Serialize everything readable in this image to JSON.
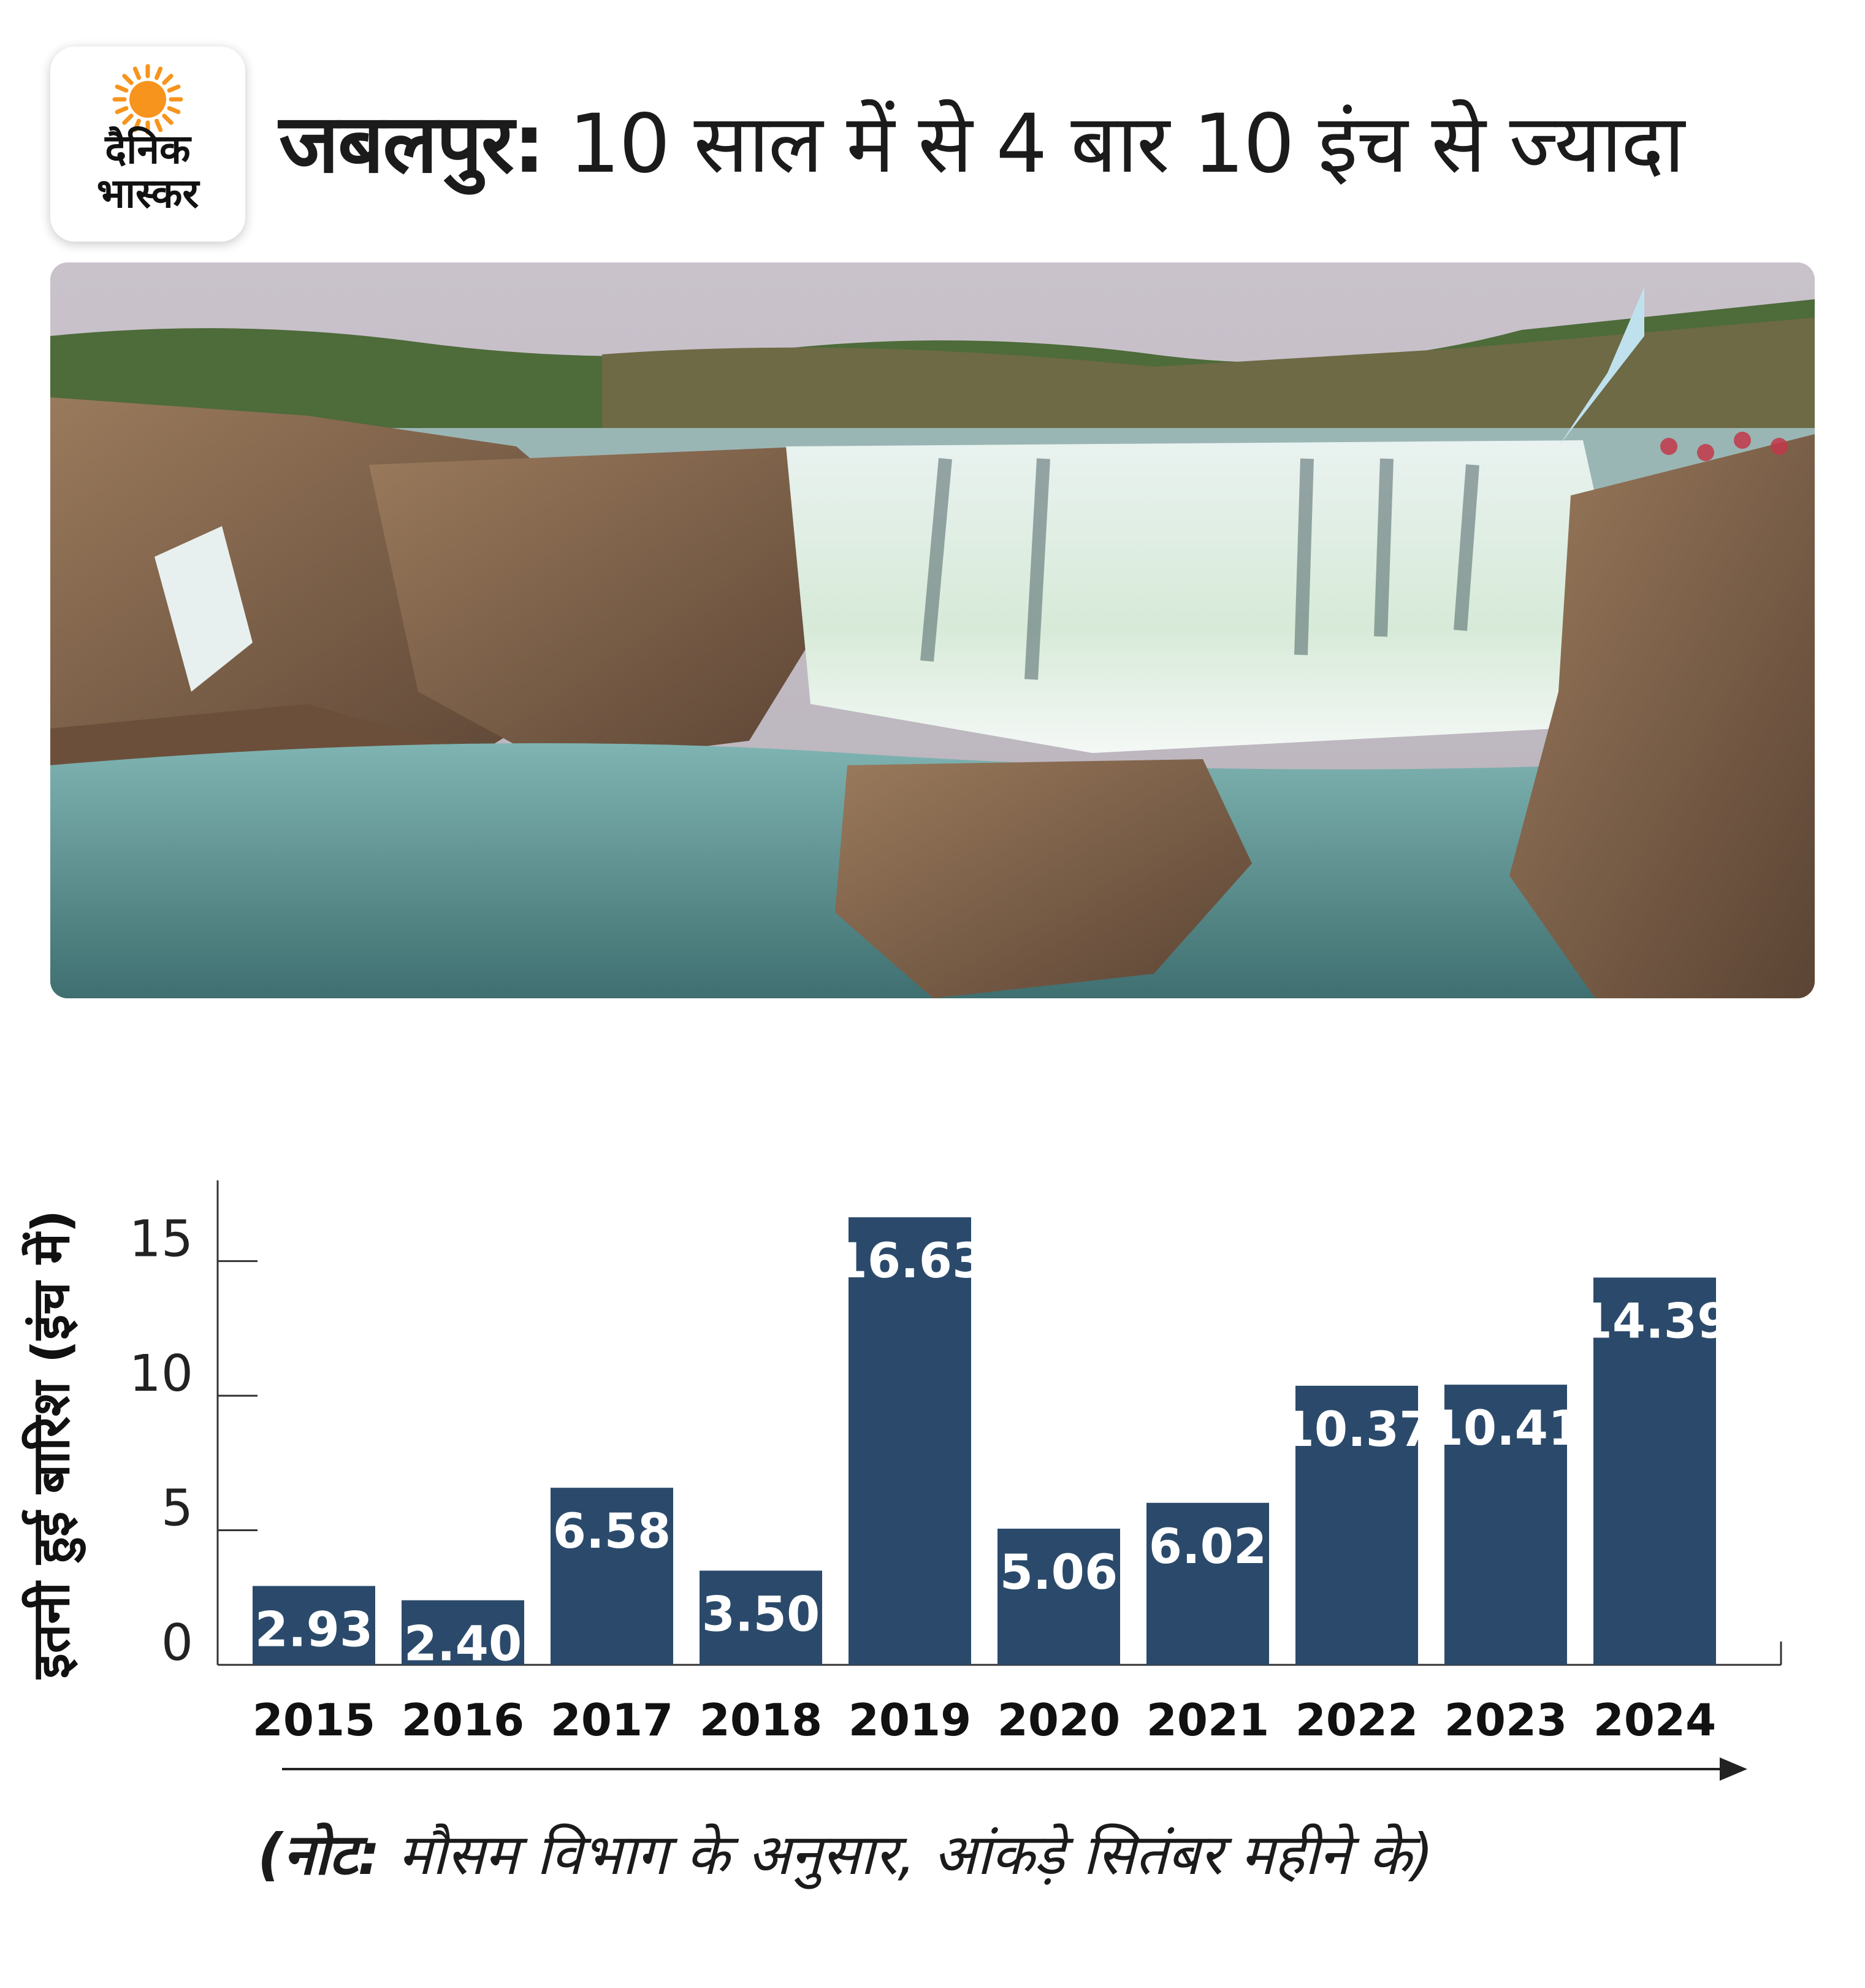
{
  "brand": {
    "line1": "दैनिक",
    "line2": "भास्कर",
    "sun_color": "#f7941d"
  },
  "headline": {
    "bold": "जबलपुर:",
    "rest": " 10 साल में से 4 बार 10 इंच से ज्यादा"
  },
  "photo": {
    "icon": "waterfall-photo"
  },
  "chart_data": {
    "type": "bar",
    "categories": [
      "2015",
      "2016",
      "2017",
      "2018",
      "2019",
      "2020",
      "2021",
      "2022",
      "2023",
      "2024"
    ],
    "values": [
      2.93,
      2.4,
      6.58,
      3.5,
      16.63,
      5.06,
      6.02,
      10.37,
      10.41,
      14.39
    ],
    "value_labels": [
      "2.93",
      "2.40",
      "6.58",
      "3.50",
      "16.63",
      "5.06",
      "6.02",
      "10.37",
      "10.41",
      "14.39"
    ],
    "ylabel": "इतनी हुई बारिश (इंच में)",
    "yticks": [
      0,
      5,
      10,
      15
    ],
    "ylim": [
      0,
      18
    ],
    "bar_color": "#2b4a6b",
    "grid": false
  },
  "note": {
    "bold": "(नोट:",
    "rest": " मौसम विभाग के अनुसार, आंकड़े सितंबर महीने के)"
  }
}
